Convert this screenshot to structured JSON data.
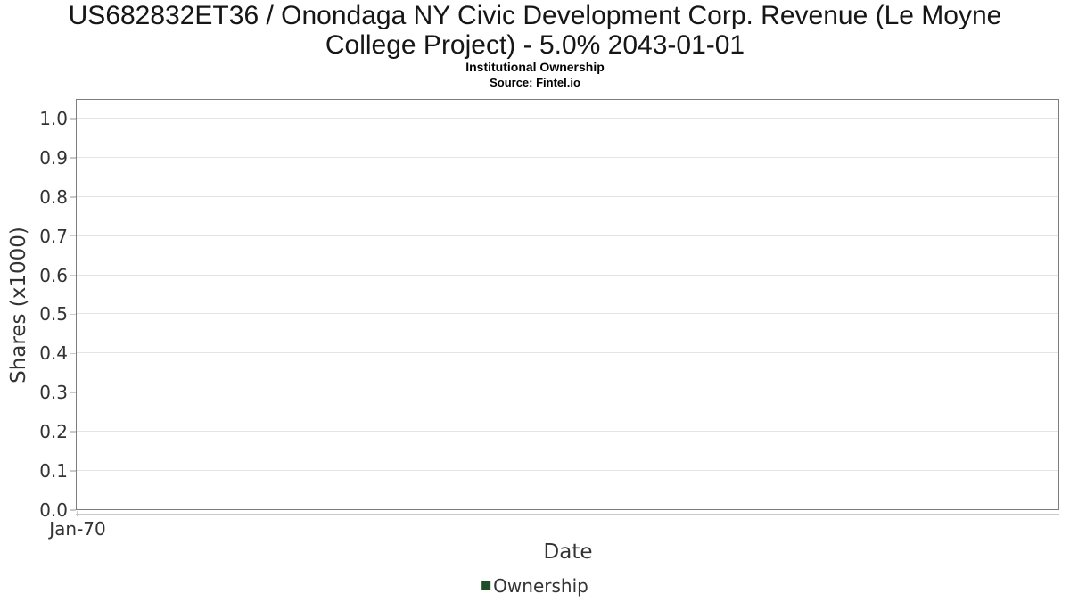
{
  "chart_data": {
    "type": "line",
    "title": "US682832ET36 / Onondaga NY Civic Development Corp. Revenue (Le Moyne College Project) - 5.0% 2043-01-01",
    "subtitle": "Institutional Ownership",
    "source": "Source: Fintel.io",
    "xlabel": "Date",
    "ylabel": "Shares (x1000)",
    "ylim": [
      0,
      1.05
    ],
    "yticks": [
      "0.0",
      "0.1",
      "0.2",
      "0.3",
      "0.4",
      "0.5",
      "0.6",
      "0.7",
      "0.8",
      "0.9",
      "1.0"
    ],
    "xticks": [
      "Jan-70"
    ],
    "grid": "horizontal-only",
    "legend_position": "bottom-center",
    "series": [
      {
        "name": "Ownership",
        "color": "#1e4f28",
        "x": [],
        "values": []
      }
    ]
  },
  "colors": {
    "plot_border": "#7d7d7d",
    "gridline": "#e4e4e4",
    "axis_line": "#c9c9c9",
    "label_text": "#333333",
    "title_text": "#161616",
    "legend_marker": "#1e4f28"
  }
}
